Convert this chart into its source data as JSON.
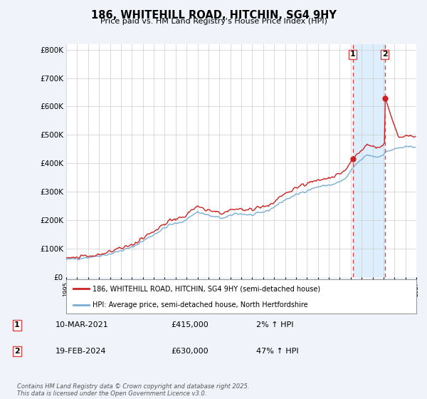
{
  "title": "186, WHITEHILL ROAD, HITCHIN, SG4 9HY",
  "subtitle": "Price paid vs. HM Land Registry's House Price Index (HPI)",
  "hpi_label": "HPI: Average price, semi-detached house, North Hertfordshire",
  "property_label": "186, WHITEHILL ROAD, HITCHIN, SG4 9HY (semi-detached house)",
  "transaction1_date": "10-MAR-2021",
  "transaction1_price": "£415,000",
  "transaction1_hpi": "2% ↑ HPI",
  "transaction1_year": 2021.19,
  "transaction1_value": 415000,
  "transaction2_date": "19-FEB-2024",
  "transaction2_price": "£630,000",
  "transaction2_hpi": "47% ↑ HPI",
  "transaction2_year": 2024.13,
  "transaction2_value": 630000,
  "footer": "Contains HM Land Registry data © Crown copyright and database right 2025.\nThis data is licensed under the Open Government Licence v3.0.",
  "ylim": [
    0,
    820000
  ],
  "yticks": [
    0,
    100000,
    200000,
    300000,
    400000,
    500000,
    600000,
    700000,
    800000
  ],
  "xlim": [
    1995,
    2027
  ],
  "background_color": "#f0f4fa",
  "plot_bg_color": "#ffffff",
  "hpi_color": "#7aaed4",
  "property_color": "#cc2222",
  "marker_color": "#cc2222",
  "vline_color": "#dd4444",
  "grid_color": "#cccccc",
  "shade_color": "#ddeeff"
}
